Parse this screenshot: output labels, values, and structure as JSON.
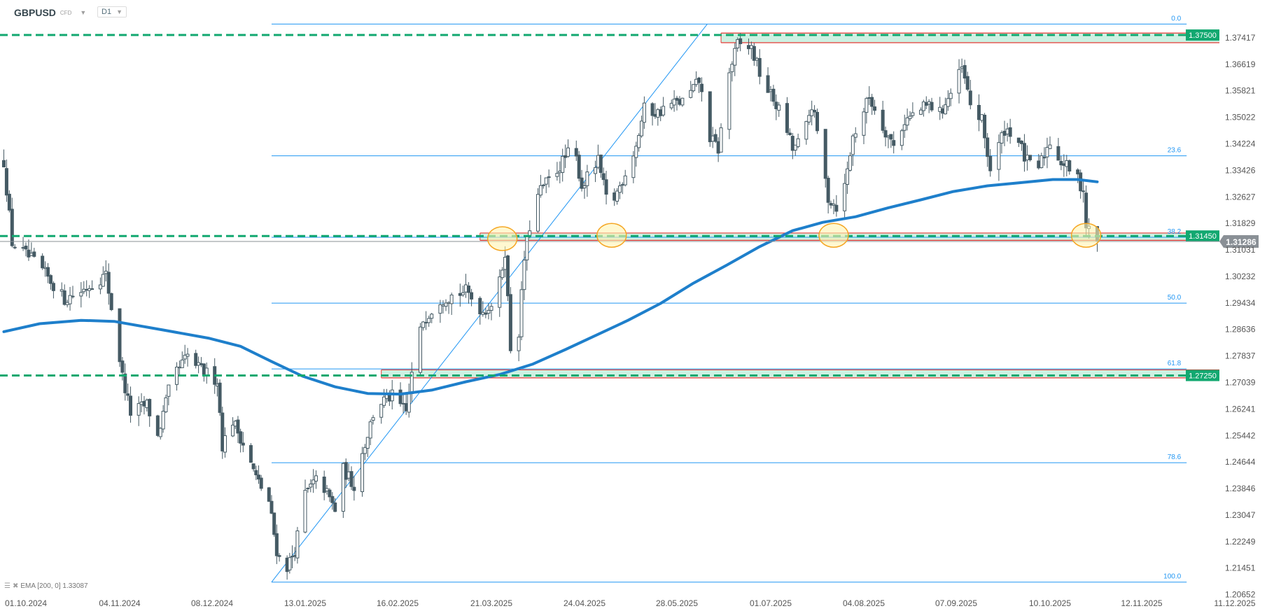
{
  "header": {
    "symbol": "GBPUSD",
    "instrument_type": "CFD",
    "timeframe": "D1"
  },
  "indicator_legend": {
    "label": "EMA [200, 0] 1.33087",
    "icons": [
      "settings-icon",
      "close-icon"
    ]
  },
  "colors": {
    "bull_fill": "#ffffff",
    "candle": "#455a64",
    "ema": "#1e7fcb",
    "fib": "#2196f3",
    "level": "#12a870",
    "zone_fill": "#cdf1e2",
    "zone_border": "#e53935",
    "ellipse_fill": "#fff3b0",
    "ellipse_stroke": "#f5a623",
    "last_price": "#8a9096"
  },
  "chart_data": {
    "type": "candlestick",
    "title": "GBPUSD D1",
    "x_unit": "days since 01.10.2024",
    "x_ticks": [
      {
        "label": "01.10.2024",
        "t": 0
      },
      {
        "label": "04.11.2024",
        "t": 34
      },
      {
        "label": "08.12.2024",
        "t": 68
      },
      {
        "label": "13.01.2025",
        "t": 104
      },
      {
        "label": "16.02.2025",
        "t": 138
      },
      {
        "label": "21.03.2025",
        "t": 171
      },
      {
        "label": "24.04.2025",
        "t": 205
      },
      {
        "label": "28.05.2025",
        "t": 239
      },
      {
        "label": "01.07.2025",
        "t": 273
      },
      {
        "label": "04.08.2025",
        "t": 307
      },
      {
        "label": "07.09.2025",
        "t": 341
      },
      {
        "label": "10.10.2025",
        "t": 374
      },
      {
        "label": "12.11.2025",
        "t": 407
      },
      {
        "label": "11.12.2025",
        "t": 436
      }
    ],
    "y_ticks": [
      "1.37417",
      "1.36619",
      "1.35821",
      "1.35022",
      "1.34224",
      "1.33426",
      "1.32627",
      "1.31829",
      "1.31031",
      "1.30232",
      "1.29434",
      "1.28636",
      "1.27837",
      "1.27039",
      "1.26241",
      "1.25442",
      "1.24644",
      "1.23846",
      "1.23047",
      "1.22249",
      "1.21451",
      "1.20652"
    ],
    "ylim": [
      1.204,
      1.383
    ],
    "price_path": [
      [
        -8,
        1.3369
      ],
      [
        -5,
        1.3125
      ],
      [
        5,
        1.3052
      ],
      [
        14,
        1.2955
      ],
      [
        20,
        1.2979
      ],
      [
        29,
        1.3028
      ],
      [
        32,
        1.2881
      ],
      [
        35,
        1.2723
      ],
      [
        38,
        1.2613
      ],
      [
        44,
        1.2637
      ],
      [
        48,
        1.254
      ],
      [
        53,
        1.2711
      ],
      [
        59,
        1.2784
      ],
      [
        63,
        1.2747
      ],
      [
        70,
        1.2711
      ],
      [
        72,
        1.2516
      ],
      [
        76,
        1.2589
      ],
      [
        79,
        1.254
      ],
      [
        85,
        1.2418
      ],
      [
        90,
        1.2345
      ],
      [
        93,
        1.2199
      ],
      [
        94,
        1.2175
      ],
      [
        97,
        1.215
      ],
      [
        100,
        1.2199
      ],
      [
        104,
        1.2369
      ],
      [
        109,
        1.2418
      ],
      [
        115,
        1.2321
      ],
      [
        118,
        1.2442
      ],
      [
        122,
        1.2394
      ],
      [
        125,
        1.2491
      ],
      [
        130,
        1.2637
      ],
      [
        136,
        1.2662
      ],
      [
        141,
        1.2613
      ],
      [
        144,
        1.2784
      ],
      [
        147,
        1.2893
      ],
      [
        153,
        1.2955
      ],
      [
        162,
        1.2979
      ],
      [
        168,
        1.2918
      ],
      [
        173,
        1.2955
      ],
      [
        176,
        1.3101
      ],
      [
        178,
        1.2808
      ],
      [
        180,
        1.2747
      ],
      [
        183,
        1.3076
      ],
      [
        186,
        1.3222
      ],
      [
        189,
        1.3283
      ],
      [
        195,
        1.3344
      ],
      [
        201,
        1.3417
      ],
      [
        204,
        1.3295
      ],
      [
        210,
        1.3369
      ],
      [
        214,
        1.3222
      ],
      [
        218,
        1.3295
      ],
      [
        224,
        1.3417
      ],
      [
        227,
        1.3527
      ],
      [
        232,
        1.3515
      ],
      [
        236,
        1.354
      ],
      [
        242,
        1.3552
      ],
      [
        247,
        1.3612
      ],
      [
        251,
        1.3442
      ],
      [
        254,
        1.3405
      ],
      [
        258,
        1.3637
      ],
      [
        261,
        1.3722
      ],
      [
        266,
        1.371
      ],
      [
        270,
        1.3612
      ],
      [
        275,
        1.354
      ],
      [
        278,
        1.3491
      ],
      [
        281,
        1.3405
      ],
      [
        285,
        1.3442
      ],
      [
        288,
        1.354
      ],
      [
        291,
        1.3417
      ],
      [
        294,
        1.3259
      ],
      [
        297,
        1.3235
      ],
      [
        300,
        1.3295
      ],
      [
        303,
        1.3442
      ],
      [
        306,
        1.3503
      ],
      [
        309,
        1.3564
      ],
      [
        313,
        1.3491
      ],
      [
        318,
        1.3417
      ],
      [
        322,
        1.3491
      ],
      [
        326,
        1.3515
      ],
      [
        331,
        1.354
      ],
      [
        335,
        1.3515
      ],
      [
        340,
        1.3588
      ],
      [
        343,
        1.3649
      ],
      [
        346,
        1.354
      ],
      [
        350,
        1.3491
      ],
      [
        353,
        1.3344
      ],
      [
        358,
        1.3467
      ],
      [
        362,
        1.3454
      ],
      [
        365,
        1.3381
      ],
      [
        369,
        1.3332
      ],
      [
        374,
        1.343
      ],
      [
        378,
        1.3369
      ],
      [
        383,
        1.3332
      ],
      [
        386,
        1.3284
      ],
      [
        387,
        1.3174
      ],
      [
        389,
        1.315
      ],
      [
        391,
        1.313
      ]
    ],
    "ema200": [
      [
        -8,
        1.2857
      ],
      [
        5,
        1.2881
      ],
      [
        20,
        1.2891
      ],
      [
        32,
        1.2888
      ],
      [
        50,
        1.2862
      ],
      [
        67,
        1.2837
      ],
      [
        79,
        1.2813
      ],
      [
        91,
        1.2767
      ],
      [
        103,
        1.2723
      ],
      [
        115,
        1.2691
      ],
      [
        127,
        1.2671
      ],
      [
        139,
        1.2669
      ],
      [
        150,
        1.2681
      ],
      [
        162,
        1.2706
      ],
      [
        174,
        1.2728
      ],
      [
        186,
        1.2759
      ],
      [
        198,
        1.2803
      ],
      [
        210,
        1.2849
      ],
      [
        221,
        1.2891
      ],
      [
        233,
        1.2942
      ],
      [
        245,
        1.3003
      ],
      [
        257,
        1.3057
      ],
      [
        269,
        1.3113
      ],
      [
        281,
        1.3161
      ],
      [
        292,
        1.3186
      ],
      [
        304,
        1.3203
      ],
      [
        316,
        1.323
      ],
      [
        328,
        1.3254
      ],
      [
        340,
        1.3279
      ],
      [
        352,
        1.3296
      ],
      [
        363,
        1.3305
      ],
      [
        375,
        1.3315
      ],
      [
        384,
        1.3315
      ],
      [
        391,
        1.3308
      ]
    ],
    "fibonacci": {
      "high": 1.3783,
      "low": 1.2103,
      "t_start": 91,
      "t_end": 421,
      "levels": [
        {
          "ratio": 0.0,
          "label": "0.0"
        },
        {
          "ratio": 0.236,
          "label": "23.6"
        },
        {
          "ratio": 0.382,
          "label": "38.2"
        },
        {
          "ratio": 0.5,
          "label": "50.0"
        },
        {
          "ratio": 0.618,
          "label": "61.8"
        },
        {
          "ratio": 0.786,
          "label": "78.6"
        },
        {
          "ratio": 1.0,
          "label": "100.0"
        }
      ]
    },
    "trendline": {
      "from": [
        91,
        1.2103
      ],
      "to": [
        250,
        1.3783
      ]
    },
    "levels": [
      {
        "price": 1.375,
        "label": "1.37500",
        "zone": [
          1.3727,
          1.3756
        ],
        "zone_start_t": 255
      },
      {
        "price": 1.3145,
        "label": "1.31450",
        "zone": [
          1.3132,
          1.3154
        ],
        "zone_start_t": 167
      },
      {
        "price": 1.2725,
        "label": "1.27250",
        "zone": [
          1.2718,
          1.2742
        ],
        "zone_start_t": 132
      }
    ],
    "highlights": [
      [
        175,
        1.3137
      ],
      [
        215,
        1.3147
      ],
      [
        296,
        1.3147
      ],
      [
        387,
        1.3147
      ]
    ],
    "last_price": {
      "value": 1.31286,
      "label": "1.31286"
    }
  }
}
